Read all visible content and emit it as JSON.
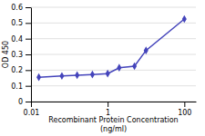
{
  "chart_data": {
    "type": "line",
    "x": [
      0.016,
      0.064,
      0.16,
      0.4,
      1.0,
      2.0,
      5.0,
      10.0,
      100.0
    ],
    "values": [
      0.155,
      0.163,
      0.168,
      0.172,
      0.178,
      0.215,
      0.225,
      0.325,
      0.525
    ],
    "color": "#4444bb",
    "marker": "diamond",
    "xlabel": "Recombinant Protein Concentration\n(ng/ml)",
    "ylabel": "OD 450",
    "log": "x",
    "xlim": [
      0.01,
      200
    ],
    "ylim": [
      0,
      0.6
    ],
    "xticks": [
      0.01,
      1,
      100
    ],
    "yticks": [
      0,
      0.1,
      0.2,
      0.3,
      0.4,
      0.5,
      0.6
    ],
    "grid": true
  }
}
